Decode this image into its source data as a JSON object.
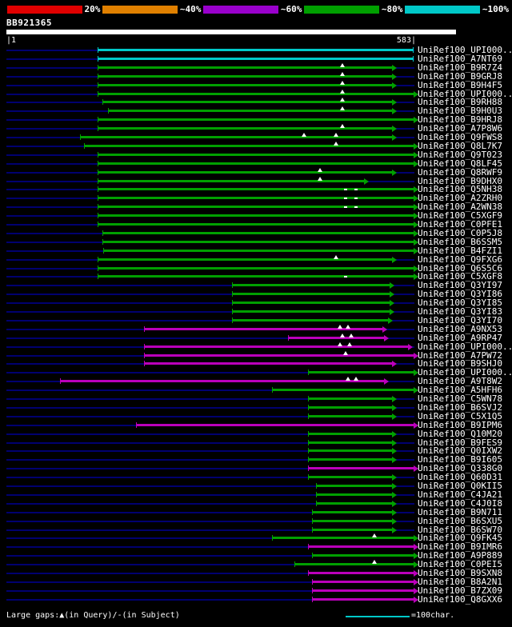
{
  "title": "BB921365",
  "legend": {
    "segments": [
      {
        "label": "20%",
        "color": "#e00000"
      },
      {
        "label": "~40%",
        "color": "#e08000"
      },
      {
        "label": "~60%",
        "color": "#9900cc"
      },
      {
        "label": "~80%",
        "color": "#00a000"
      },
      {
        "label": "~100%",
        "color": "#00c8c8"
      }
    ]
  },
  "scale": {
    "start_label": "|1",
    "end_label": "583|",
    "min": 1,
    "max": 583
  },
  "footer": {
    "gaps_label": "Large gaps:▲(in Query)/-(in Subject)",
    "scale_label": "=100char.",
    "scale_color": "#00c8c8"
  },
  "chart_data": {
    "type": "bar",
    "subtype": "blast-alignment-overview",
    "title": "BB921365",
    "xlabel": "query position",
    "axis": {
      "min": 1,
      "max": 583
    },
    "palette": {
      "cyan": "#00c8c8",
      "green": "#00a000",
      "magenta": "#bb00bb",
      "baseline": "#000070"
    },
    "rows": [
      {
        "label": "UniRef100_UPI000..",
        "color": "cyan",
        "start": 130,
        "end": 583,
        "cap": "tick",
        "gaps": []
      },
      {
        "label": "UniRef100_A7NT69",
        "color": "cyan",
        "start": 130,
        "end": 583,
        "cap": "tick",
        "gaps": []
      },
      {
        "label": "UniRef100_B9R7Z4",
        "color": "green",
        "start": 130,
        "end": 552,
        "cap": "arrow",
        "gaps": [
          {
            "pos": 481,
            "type": "tri"
          }
        ]
      },
      {
        "label": "UniRef100_B9GRJ8",
        "color": "green",
        "start": 130,
        "end": 552,
        "cap": "arrow",
        "gaps": [
          {
            "pos": 481,
            "type": "tri"
          }
        ]
      },
      {
        "label": "UniRef100_B9H4F5",
        "color": "green",
        "start": 130,
        "end": 552,
        "cap": "arrow",
        "gaps": [
          {
            "pos": 481,
            "type": "tri"
          }
        ]
      },
      {
        "label": "UniRef100_UPI000..",
        "color": "green",
        "start": 130,
        "end": 583,
        "cap": "arrow",
        "gaps": [
          {
            "pos": 481,
            "type": "tri"
          }
        ]
      },
      {
        "label": "UniRef100_B9RH88",
        "color": "green",
        "start": 136,
        "end": 552,
        "cap": "arrow",
        "gaps": [
          {
            "pos": 481,
            "type": "tri"
          }
        ]
      },
      {
        "label": "UniRef100_B9H0U3",
        "color": "green",
        "start": 144,
        "end": 552,
        "cap": "arrow",
        "gaps": [
          {
            "pos": 481,
            "type": "tri"
          }
        ]
      },
      {
        "label": "UniRef100_B9HRJ8",
        "color": "green",
        "start": 130,
        "end": 583,
        "cap": "arrow",
        "gaps": []
      },
      {
        "label": "UniRef100_A7P8W6",
        "color": "green",
        "start": 130,
        "end": 552,
        "cap": "arrow",
        "gaps": [
          {
            "pos": 481,
            "type": "tri"
          }
        ]
      },
      {
        "label": "UniRef100_Q9FWS8",
        "color": "green",
        "start": 104,
        "end": 552,
        "cap": "arrow",
        "gaps": [
          {
            "pos": 426,
            "type": "tri"
          },
          {
            "pos": 472,
            "type": "tri"
          }
        ]
      },
      {
        "label": "UniRef100_Q8L7K7",
        "color": "green",
        "start": 110,
        "end": 583,
        "cap": "arrow",
        "gaps": [
          {
            "pos": 472,
            "type": "tri"
          }
        ]
      },
      {
        "label": "UniRef100_Q9T023",
        "color": "green",
        "start": 130,
        "end": 583,
        "cap": "arrow",
        "gaps": []
      },
      {
        "label": "UniRef100_Q8LF45",
        "color": "green",
        "start": 130,
        "end": 583,
        "cap": "arrow",
        "gaps": []
      },
      {
        "label": "UniRef100_Q8RWF9",
        "color": "green",
        "start": 130,
        "end": 552,
        "cap": "arrow",
        "gaps": [
          {
            "pos": 449,
            "type": "tri"
          }
        ]
      },
      {
        "label": "UniRef100_B9DHX0",
        "color": "green",
        "start": 130,
        "end": 512,
        "cap": "arrow",
        "gaps": [
          {
            "pos": 449,
            "type": "tri"
          }
        ]
      },
      {
        "label": "UniRef100_Q5NH38",
        "color": "green",
        "start": 130,
        "end": 583,
        "cap": "arrow",
        "gaps": [
          {
            "pos": 485,
            "type": "dash"
          },
          {
            "pos": 500,
            "type": "dash"
          }
        ]
      },
      {
        "label": "UniRef100_A2ZRH0",
        "color": "green",
        "start": 130,
        "end": 583,
        "cap": "arrow",
        "gaps": [
          {
            "pos": 485,
            "type": "dash"
          },
          {
            "pos": 500,
            "type": "dash"
          }
        ]
      },
      {
        "label": "UniRef100_A2WN38",
        "color": "green",
        "start": 130,
        "end": 583,
        "cap": "arrow",
        "gaps": [
          {
            "pos": 485,
            "type": "dash"
          },
          {
            "pos": 500,
            "type": "dash"
          }
        ]
      },
      {
        "label": "UniRef100_C5XGF9",
        "color": "green",
        "start": 130,
        "end": 583,
        "cap": "arrow",
        "gaps": []
      },
      {
        "label": "UniRef100_C0PFE1",
        "color": "green",
        "start": 130,
        "end": 583,
        "cap": "arrow",
        "gaps": []
      },
      {
        "label": "UniRef100_C0P5J8",
        "color": "green",
        "start": 136,
        "end": 583,
        "cap": "arrow",
        "gaps": []
      },
      {
        "label": "UniRef100_B6SSM5",
        "color": "green",
        "start": 136,
        "end": 583,
        "cap": "arrow",
        "gaps": []
      },
      {
        "label": "UniRef100_B4FZI1",
        "color": "green",
        "start": 138,
        "end": 583,
        "cap": "arrow",
        "gaps": []
      },
      {
        "label": "UniRef100_Q9FXG6",
        "color": "green",
        "start": 130,
        "end": 552,
        "cap": "arrow",
        "gaps": [
          {
            "pos": 472,
            "type": "tri"
          }
        ]
      },
      {
        "label": "UniRef100_Q6S5C6",
        "color": "green",
        "start": 130,
        "end": 583,
        "cap": "arrow",
        "gaps": []
      },
      {
        "label": "UniRef100_C5XGF8",
        "color": "green",
        "start": 130,
        "end": 583,
        "cap": "arrow",
        "gaps": [
          {
            "pos": 485,
            "type": "dash"
          }
        ]
      },
      {
        "label": "UniRef100_Q3YI97",
        "color": "green",
        "start": 322,
        "end": 549,
        "cap": "arrow",
        "gaps": []
      },
      {
        "label": "UniRef100_Q3YI86",
        "color": "green",
        "start": 322,
        "end": 549,
        "cap": "arrow",
        "gaps": []
      },
      {
        "label": "UniRef100_Q3YI85",
        "color": "green",
        "start": 322,
        "end": 549,
        "cap": "arrow",
        "gaps": []
      },
      {
        "label": "UniRef100_Q3YI83",
        "color": "green",
        "start": 322,
        "end": 549,
        "cap": "arrow",
        "gaps": []
      },
      {
        "label": "UniRef100_Q3YI70",
        "color": "green",
        "start": 322,
        "end": 546,
        "cap": "arrow",
        "gaps": []
      },
      {
        "label": "UniRef100_A9NX53",
        "color": "magenta",
        "start": 196,
        "end": 538,
        "cap": "arrow",
        "gaps": [
          {
            "pos": 477,
            "type": "tri"
          },
          {
            "pos": 489,
            "type": "tri"
          }
        ]
      },
      {
        "label": "UniRef100_A9RP47",
        "color": "magenta",
        "start": 403,
        "end": 540,
        "cap": "arrow",
        "gaps": [
          {
            "pos": 481,
            "type": "tri"
          },
          {
            "pos": 494,
            "type": "tri"
          }
        ]
      },
      {
        "label": "UniRef100_UPI000..",
        "color": "magenta",
        "start": 196,
        "end": 575,
        "cap": "arrow",
        "gaps": [
          {
            "pos": 477,
            "type": "tri"
          },
          {
            "pos": 491,
            "type": "tri"
          }
        ]
      },
      {
        "label": "UniRef100_A7PW72",
        "color": "magenta",
        "start": 196,
        "end": 583,
        "cap": "arrow",
        "gaps": [
          {
            "pos": 485,
            "type": "tri"
          }
        ]
      },
      {
        "label": "UniRef100_B9SHJ0",
        "color": "magenta",
        "start": 196,
        "end": 552,
        "cap": "arrow",
        "gaps": []
      },
      {
        "label": "UniRef100_UPI000..",
        "color": "green",
        "start": 431,
        "end": 583,
        "cap": "arrow",
        "gaps": []
      },
      {
        "label": "UniRef100_A9T8W2",
        "color": "magenta",
        "start": 76,
        "end": 540,
        "cap": "arrow",
        "gaps": [
          {
            "pos": 489,
            "type": "tri"
          },
          {
            "pos": 500,
            "type": "tri"
          }
        ]
      },
      {
        "label": "UniRef100_A5HFH6",
        "color": "green",
        "start": 380,
        "end": 583,
        "cap": "arrow",
        "gaps": []
      },
      {
        "label": "UniRef100_C5WN78",
        "color": "green",
        "start": 431,
        "end": 552,
        "cap": "arrow",
        "gaps": []
      },
      {
        "label": "UniRef100_B6SVJ2",
        "color": "green",
        "start": 431,
        "end": 552,
        "cap": "arrow",
        "gaps": []
      },
      {
        "label": "UniRef100_C5X1Q5",
        "color": "green",
        "start": 431,
        "end": 552,
        "cap": "arrow",
        "gaps": []
      },
      {
        "label": "UniRef100_B9IPM6",
        "color": "magenta",
        "start": 185,
        "end": 583,
        "cap": "arrow",
        "gaps": []
      },
      {
        "label": "UniRef100_Q10M20",
        "color": "green",
        "start": 431,
        "end": 552,
        "cap": "arrow",
        "gaps": []
      },
      {
        "label": "UniRef100_B9FES9",
        "color": "green",
        "start": 431,
        "end": 552,
        "cap": "arrow",
        "gaps": []
      },
      {
        "label": "UniRef100_Q0IXW2",
        "color": "green",
        "start": 431,
        "end": 552,
        "cap": "arrow",
        "gaps": []
      },
      {
        "label": "UniRef100_B9I605",
        "color": "green",
        "start": 431,
        "end": 552,
        "cap": "arrow",
        "gaps": []
      },
      {
        "label": "UniRef100_Q338G0",
        "color": "magenta",
        "start": 431,
        "end": 583,
        "cap": "arrow",
        "gaps": []
      },
      {
        "label": "UniRef100_Q60D31",
        "color": "green",
        "start": 431,
        "end": 552,
        "cap": "arrow",
        "gaps": []
      },
      {
        "label": "UniRef100_Q0KII5",
        "color": "green",
        "start": 443,
        "end": 552,
        "cap": "arrow",
        "gaps": []
      },
      {
        "label": "UniRef100_C4JA21",
        "color": "green",
        "start": 443,
        "end": 552,
        "cap": "arrow",
        "gaps": []
      },
      {
        "label": "UniRef100_C4J0I8",
        "color": "green",
        "start": 443,
        "end": 552,
        "cap": "arrow",
        "gaps": []
      },
      {
        "label": "UniRef100_B9N711",
        "color": "green",
        "start": 437,
        "end": 552,
        "cap": "arrow",
        "gaps": []
      },
      {
        "label": "UniRef100_B6SXU5",
        "color": "green",
        "start": 437,
        "end": 552,
        "cap": "arrow",
        "gaps": []
      },
      {
        "label": "UniRef100_B6SW70",
        "color": "green",
        "start": 437,
        "end": 552,
        "cap": "arrow",
        "gaps": []
      },
      {
        "label": "UniRef100_Q9FK45",
        "color": "green",
        "start": 380,
        "end": 583,
        "cap": "arrow",
        "gaps": [
          {
            "pos": 527,
            "type": "tri"
          }
        ]
      },
      {
        "label": "UniRef100_B9IMR6",
        "color": "magenta",
        "start": 431,
        "end": 583,
        "cap": "arrow",
        "gaps": []
      },
      {
        "label": "UniRef100_A9P889",
        "color": "green",
        "start": 437,
        "end": 583,
        "cap": "arrow",
        "gaps": []
      },
      {
        "label": "UniRef100_C0PEI5",
        "color": "green",
        "start": 412,
        "end": 583,
        "cap": "arrow",
        "gaps": [
          {
            "pos": 527,
            "type": "tri"
          }
        ]
      },
      {
        "label": "UniRef100_B9SXN8",
        "color": "magenta",
        "start": 431,
        "end": 583,
        "cap": "arrow",
        "gaps": []
      },
      {
        "label": "UniRef100_B8A2N1",
        "color": "magenta",
        "start": 437,
        "end": 583,
        "cap": "arrow",
        "gaps": []
      },
      {
        "label": "UniRef100_B7ZX09",
        "color": "magenta",
        "start": 437,
        "end": 583,
        "cap": "arrow",
        "gaps": []
      },
      {
        "label": "UniRef100_Q8GXX6",
        "color": "magenta",
        "start": 437,
        "end": 583,
        "cap": "arrow",
        "gaps": []
      }
    ]
  }
}
